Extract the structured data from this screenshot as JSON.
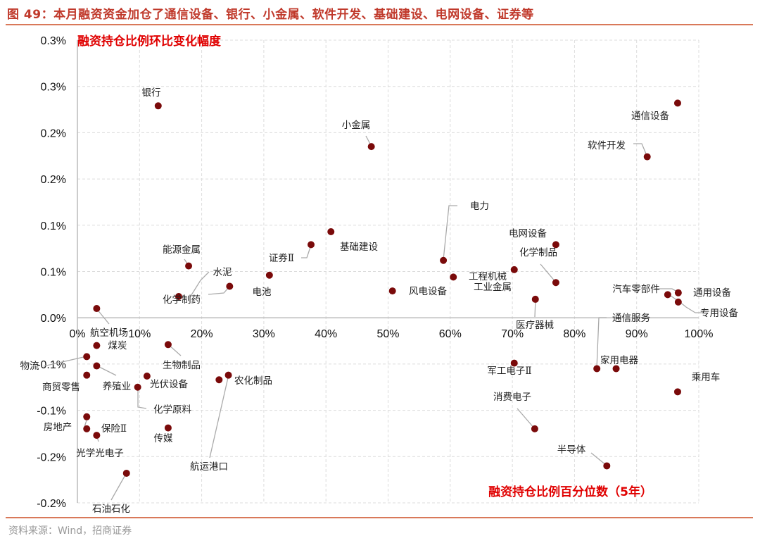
{
  "figure_title": "图 49：本月融资资金加仓了通信设备、银行、小金属、软件开发、基础建设、电网设备、证券等",
  "source": "资料来源：Wind，招商证券",
  "chart_data": {
    "type": "scatter",
    "title": "",
    "ylabel": "融资持仓比例环比变化幅度",
    "xlabel": "融资持仓比例百分位数（5年）",
    "xlim": [
      0,
      100
    ],
    "ylim": [
      -0.2,
      0.3
    ],
    "x_unit": "%",
    "y_unit": "%",
    "grid": true,
    "point_color": "#7a0a0a",
    "x_ticks": [
      {
        "v": 0,
        "label": "0%"
      },
      {
        "v": 10,
        "label": "10%"
      },
      {
        "v": 20,
        "label": "20%"
      },
      {
        "v": 30,
        "label": "30%"
      },
      {
        "v": 40,
        "label": "40%"
      },
      {
        "v": 50,
        "label": "50%"
      },
      {
        "v": 60,
        "label": "60%"
      },
      {
        "v": 70,
        "label": "70%"
      },
      {
        "v": 80,
        "label": "80%"
      },
      {
        "v": 90,
        "label": "90%"
      },
      {
        "v": 100,
        "label": "100%"
      }
    ],
    "y_ticks": [
      {
        "v": 0.3,
        "label": "0.3%"
      },
      {
        "v": 0.25,
        "label": "0.3%"
      },
      {
        "v": 0.2,
        "label": "0.2%"
      },
      {
        "v": 0.15,
        "label": "0.2%"
      },
      {
        "v": 0.1,
        "label": "0.1%"
      },
      {
        "v": 0.05,
        "label": "0.1%"
      },
      {
        "v": 0.0,
        "label": "0.0%"
      },
      {
        "v": -0.05,
        "label": "-0.1%"
      },
      {
        "v": -0.1,
        "label": "-0.1%"
      },
      {
        "v": -0.15,
        "label": "-0.2%"
      },
      {
        "v": -0.2,
        "label": "-0.2%"
      }
    ],
    "points": [
      {
        "label": "银行",
        "x": 13.0,
        "y": 0.229
      },
      {
        "label": "小金属",
        "x": 47.3,
        "y": 0.185
      },
      {
        "label": "通信设备",
        "x": 96.6,
        "y": 0.232
      },
      {
        "label": "软件开发",
        "x": 91.7,
        "y": 0.174
      },
      {
        "label": "电力",
        "x": 58.9,
        "y": 0.062
      },
      {
        "label": "基础建设",
        "x": 40.8,
        "y": 0.093
      },
      {
        "label": "证券Ⅱ",
        "x": 37.6,
        "y": 0.079
      },
      {
        "label": "电网设备",
        "x": 77.0,
        "y": 0.079
      },
      {
        "label": "化学制品",
        "x": 77.0,
        "y": 0.038
      },
      {
        "label": "工程机械",
        "x": 70.3,
        "y": 0.052
      },
      {
        "label": "工业金属",
        "x": 60.5,
        "y": 0.044
      },
      {
        "label": "能源金属",
        "x": 17.9,
        "y": 0.056
      },
      {
        "label": "水泥",
        "x": 24.5,
        "y": 0.034
      },
      {
        "label": "化学制药",
        "x": 16.3,
        "y": 0.023
      },
      {
        "label": "电池",
        "x": 30.9,
        "y": 0.046
      },
      {
        "label": "风电设备",
        "x": 50.7,
        "y": 0.029
      },
      {
        "label": "医疗器械",
        "x": 73.7,
        "y": 0.02
      },
      {
        "label": "汽车零部件",
        "x": 95.0,
        "y": 0.025
      },
      {
        "label": "通用设备",
        "x": 96.7,
        "y": 0.027
      },
      {
        "label": "专用设备",
        "x": 96.7,
        "y": 0.017
      },
      {
        "label": "航空机场",
        "x": 3.1,
        "y": 0.01
      },
      {
        "label": "煤炭",
        "x": 3.1,
        "y": -0.03
      },
      {
        "label": "物流",
        "x": 1.5,
        "y": -0.042
      },
      {
        "label": "养殖业",
        "x": 3.1,
        "y": -0.052
      },
      {
        "label": "商贸零售",
        "x": 1.5,
        "y": -0.062
      },
      {
        "label": "生物制品",
        "x": 14.6,
        "y": -0.029
      },
      {
        "label": "光伏设备",
        "x": 11.2,
        "y": -0.063
      },
      {
        "label": "化学原料",
        "x": 9.7,
        "y": -0.075
      },
      {
        "label": "农化制品",
        "x": 24.3,
        "y": -0.062
      },
      {
        "label": "航运港口",
        "x": 22.8,
        "y": -0.067
      },
      {
        "label": "房地产",
        "x": 1.5,
        "y": -0.107
      },
      {
        "label": "保险Ⅱ",
        "x": 1.5,
        "y": -0.12
      },
      {
        "label": "光学光电子",
        "x": 3.1,
        "y": -0.127
      },
      {
        "label": "传媒",
        "x": 14.6,
        "y": -0.119
      },
      {
        "label": "石油石化",
        "x": 7.9,
        "y": -0.168
      },
      {
        "label": "军工电子Ⅱ",
        "x": 70.3,
        "y": -0.049
      },
      {
        "label": "通信服务",
        "x": 83.6,
        "y": -0.055
      },
      {
        "label": "家用电器",
        "x": 86.7,
        "y": -0.055
      },
      {
        "label": "乘用车",
        "x": 96.6,
        "y": -0.08
      },
      {
        "label": "消费电子",
        "x": 73.6,
        "y": -0.12
      },
      {
        "label": "半导体",
        "x": 85.2,
        "y": -0.16
      }
    ]
  }
}
